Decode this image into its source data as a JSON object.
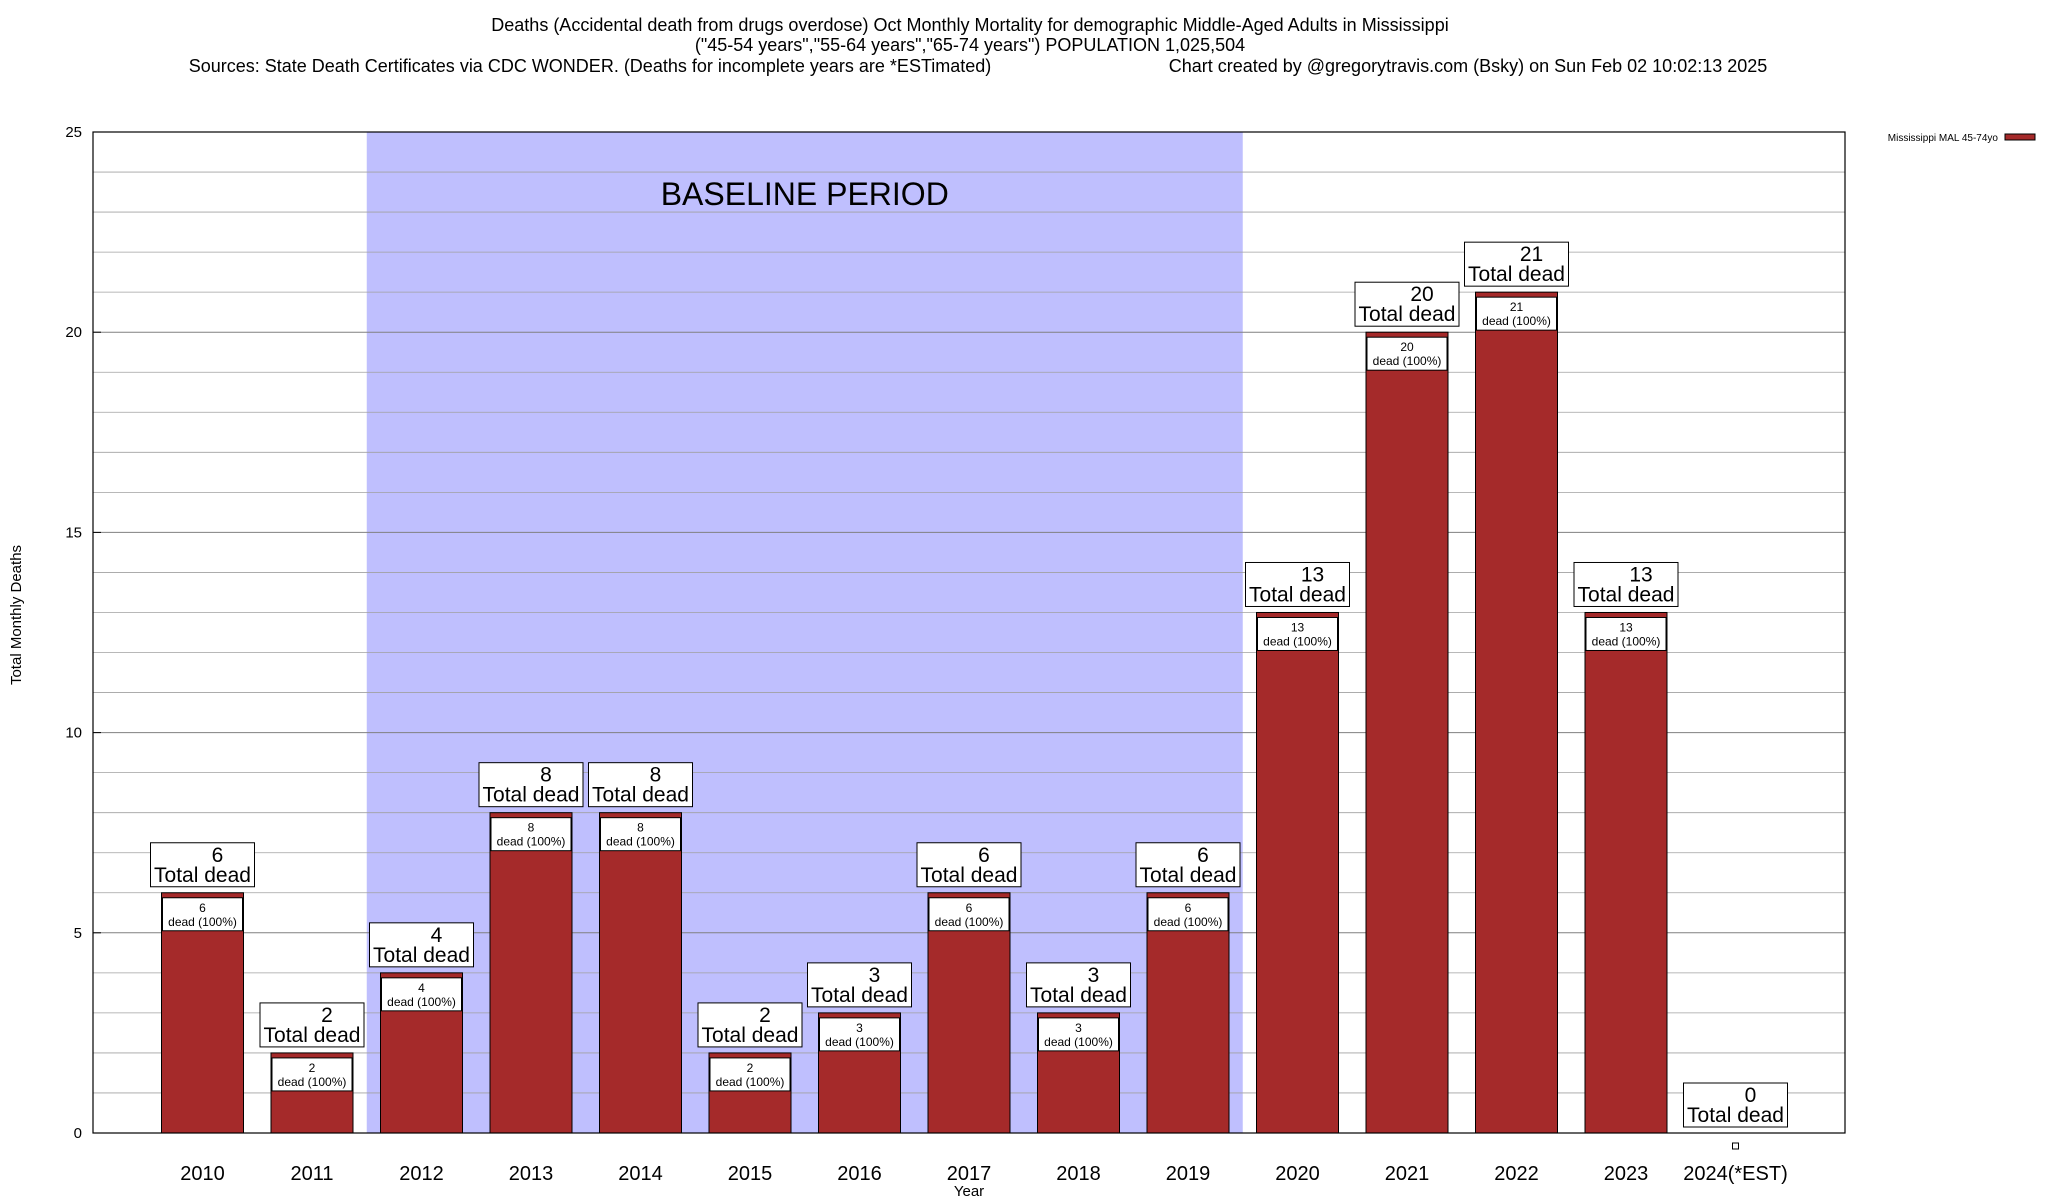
{
  "titles": {
    "line1": "Deaths (Accidental death from drugs overdose) Oct Monthly Mortality for demographic Middle-Aged Adults in Mississippi",
    "line2": "(\"45-54 years\",\"55-64 years\",\"65-74 years\") POPULATION 1,025,504",
    "line3_left": "Sources: State Death Certificates via CDC WONDER. (Deaths for incomplete years are *ESTimated)",
    "line3_right": "Chart created by @gregorytravis.com (Bsky) on Sun Feb 02 10:02:13 2025"
  },
  "colors": {
    "bar": "#a52a2a",
    "baseline_band": "#bfbffe",
    "grid": "#a0a0a0",
    "axis": "#000000"
  },
  "chart_data": {
    "type": "bar",
    "title": "Deaths (Accidental death from drugs overdose) Oct Monthly Mortality for demographic Middle-Aged Adults in Mississippi",
    "xlabel": "Year",
    "ylabel": "Total Monthly Deaths",
    "ylim": [
      0,
      25
    ],
    "yticks": [
      0,
      5,
      10,
      15,
      20,
      25
    ],
    "minor_grid_step": 1,
    "grid": true,
    "legend_position": "top-right",
    "categories": [
      "2010",
      "2011",
      "2012",
      "2013",
      "2014",
      "2015",
      "2016",
      "2017",
      "2018",
      "2019",
      "2020",
      "2021",
      "2022",
      "2023",
      "2024(*EST)"
    ],
    "series": [
      {
        "name": "Mississippi MAL 45-74yo",
        "values": [
          6,
          2,
          4,
          8,
          8,
          2,
          3,
          6,
          3,
          6,
          13,
          20,
          21,
          13,
          0
        ]
      }
    ],
    "total_label_suffix": "Total dead",
    "inner_label_suffix": "dead (100%)",
    "annotation": {
      "text": "BASELINE PERIOD",
      "from_category": "2012",
      "to_category": "2019"
    }
  }
}
